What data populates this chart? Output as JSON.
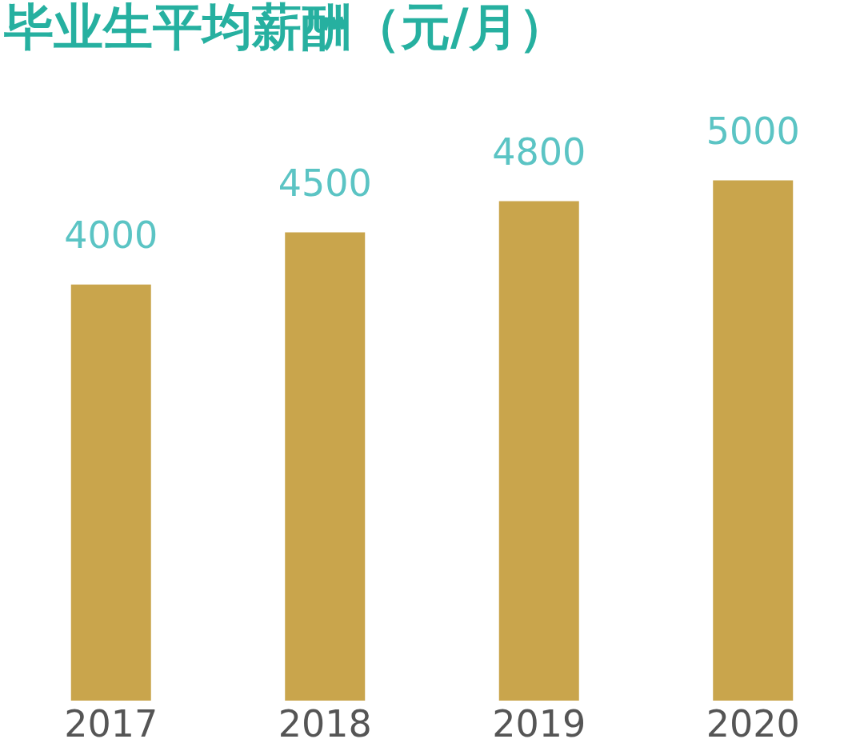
{
  "chart_data": {
    "type": "bar",
    "title": "毕业生平均薪酬（元/月）",
    "categories": [
      "2017",
      "2018",
      "2019",
      "2020"
    ],
    "values": [
      4000,
      4500,
      4800,
      5000
    ],
    "color": "#c9a54c",
    "data_labels": true
  }
}
